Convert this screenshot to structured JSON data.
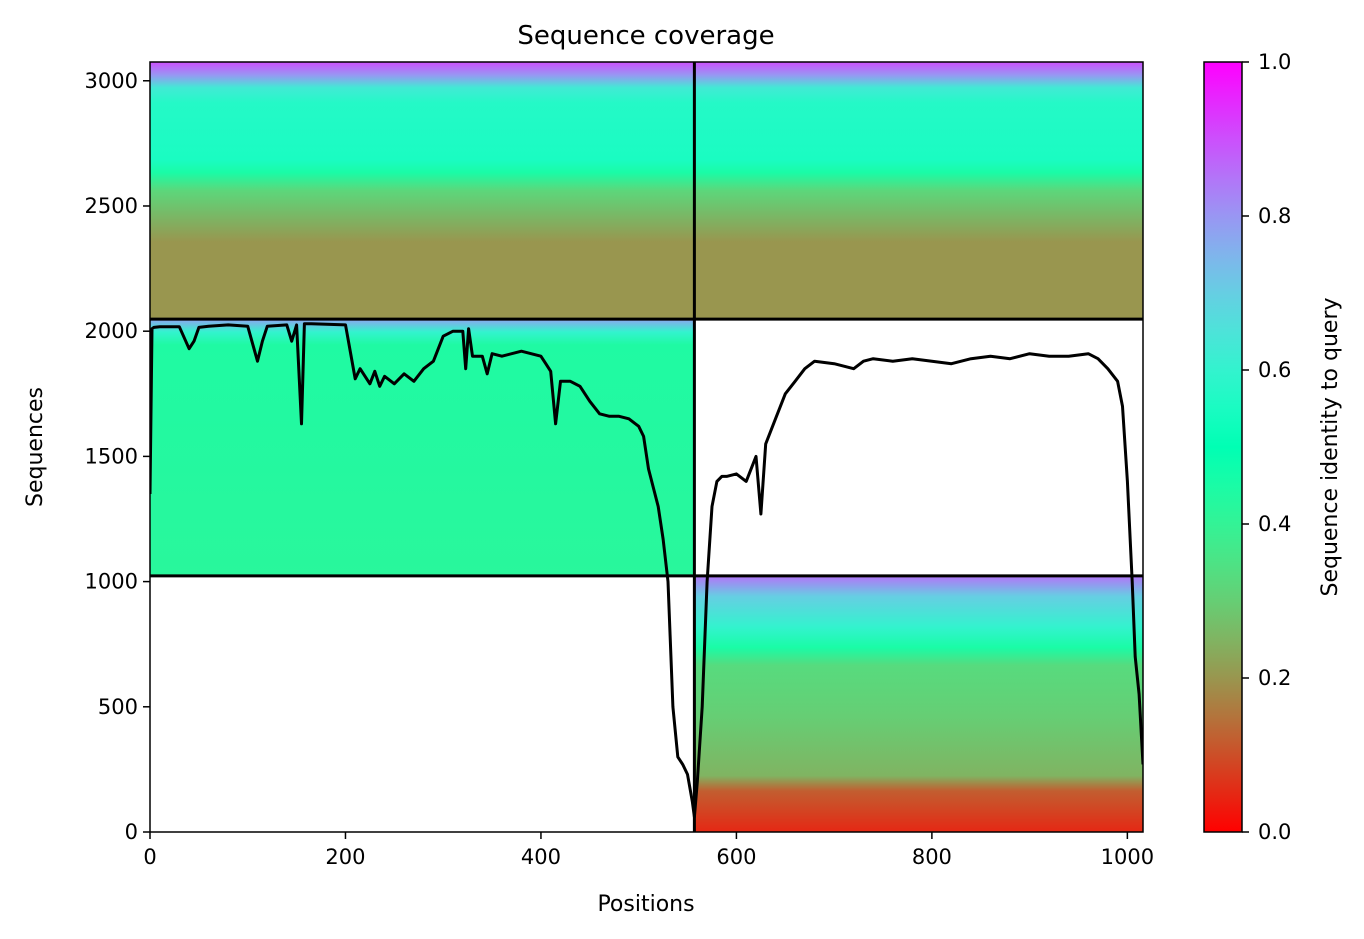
{
  "chart_data": {
    "type": "heatmap",
    "title": "Sequence coverage",
    "xlabel": "Positions",
    "ylabel": "Sequences",
    "colorbar_label": "Sequence identity to query",
    "xlim": [
      0,
      1016
    ],
    "ylim": [
      0,
      3075
    ],
    "xticks": [
      0,
      200,
      400,
      600,
      800,
      1000
    ],
    "yticks": [
      0,
      500,
      1000,
      1500,
      2000,
      2500,
      3000
    ],
    "colorbar_ticks": [
      "0.0",
      "0.2",
      "0.4",
      "0.6",
      "0.8",
      "1.0"
    ],
    "colorbar_range": [
      0,
      1
    ],
    "colormap": "rainbow_r",
    "grid": false,
    "chain_boundary_x": 557,
    "block_boundaries_y": [
      1023,
      2048
    ],
    "line_color": "#000000",
    "blocks": [
      {
        "x": [
          0,
          557
        ],
        "y": [
          2048,
          3075
        ],
        "identity_stops": [
          [
            0,
            0.2
          ],
          [
            0.3,
            0.2
          ],
          [
            0.5,
            0.32
          ],
          [
            0.57,
            0.45
          ],
          [
            0.62,
            0.55
          ],
          [
            0.84,
            0.57
          ],
          [
            0.9,
            0.63
          ],
          [
            0.95,
            0.8
          ],
          [
            1,
            0.9
          ]
        ]
      },
      {
        "x": [
          557,
          1016
        ],
        "y": [
          2048,
          3075
        ],
        "identity_stops": [
          [
            0,
            0.2
          ],
          [
            0.3,
            0.2
          ],
          [
            0.5,
            0.32
          ],
          [
            0.57,
            0.45
          ],
          [
            0.62,
            0.55
          ],
          [
            0.84,
            0.57
          ],
          [
            0.9,
            0.63
          ],
          [
            0.95,
            0.8
          ],
          [
            1,
            0.9
          ]
        ]
      },
      {
        "x": [
          0,
          557
        ],
        "y": [
          1023,
          2048
        ],
        "identity_stops": [
          [
            0,
            0.42
          ],
          [
            0.9,
            0.44
          ],
          [
            0.95,
            0.6
          ],
          [
            1,
            0.78
          ]
        ]
      },
      {
        "x": [
          557,
          1016
        ],
        "y": [
          0,
          1023
        ],
        "identity_stops": [
          [
            0,
            0.05
          ],
          [
            0.16,
            0.12
          ],
          [
            0.22,
            0.25
          ],
          [
            0.45,
            0.3
          ],
          [
            0.65,
            0.33
          ],
          [
            0.72,
            0.45
          ],
          [
            0.8,
            0.6
          ],
          [
            0.92,
            0.7
          ],
          [
            1,
            0.85
          ]
        ]
      }
    ],
    "coverage_line": {
      "x": [
        0,
        2,
        4,
        10,
        30,
        40,
        45,
        50,
        60,
        80,
        100,
        110,
        115,
        120,
        140,
        145,
        150,
        155,
        158,
        160,
        165,
        200,
        210,
        215,
        225,
        230,
        235,
        240,
        250,
        260,
        270,
        280,
        290,
        300,
        310,
        320,
        323,
        326,
        330,
        340,
        345,
        350,
        360,
        380,
        400,
        405,
        410,
        415,
        420,
        430,
        440,
        450,
        460,
        470,
        480,
        490,
        500,
        505,
        510,
        520,
        525,
        530,
        535,
        540,
        545,
        550,
        555,
        557,
        560,
        565,
        570,
        575,
        580,
        585,
        590,
        600,
        610,
        620,
        625,
        630,
        640,
        650,
        660,
        670,
        680,
        700,
        720,
        730,
        740,
        760,
        780,
        800,
        820,
        840,
        860,
        880,
        900,
        920,
        940,
        960,
        970,
        980,
        990,
        995,
        1000,
        1005,
        1008,
        1012,
        1016
      ],
      "y": [
        1350,
        2010,
        2015,
        2018,
        2018,
        1930,
        1960,
        2015,
        2020,
        2025,
        2020,
        1880,
        1960,
        2020,
        2025,
        1960,
        2025,
        1630,
        2030,
        2030,
        2030,
        2025,
        1810,
        1850,
        1790,
        1840,
        1780,
        1820,
        1790,
        1830,
        1800,
        1850,
        1880,
        1980,
        2000,
        2000,
        1850,
        2010,
        1900,
        1900,
        1830,
        1910,
        1900,
        1920,
        1900,
        1870,
        1840,
        1630,
        1800,
        1800,
        1780,
        1720,
        1670,
        1660,
        1660,
        1650,
        1620,
        1580,
        1450,
        1300,
        1170,
        1000,
        500,
        300,
        270,
        230,
        120,
        60,
        200,
        500,
        1000,
        1300,
        1400,
        1420,
        1420,
        1430,
        1400,
        1500,
        1270,
        1550,
        1650,
        1750,
        1800,
        1850,
        1880,
        1870,
        1850,
        1880,
        1890,
        1880,
        1890,
        1880,
        1870,
        1890,
        1900,
        1890,
        1910,
        1900,
        1900,
        1910,
        1890,
        1850,
        1800,
        1700,
        1400,
        1000,
        700,
        550,
        270
      ]
    }
  }
}
